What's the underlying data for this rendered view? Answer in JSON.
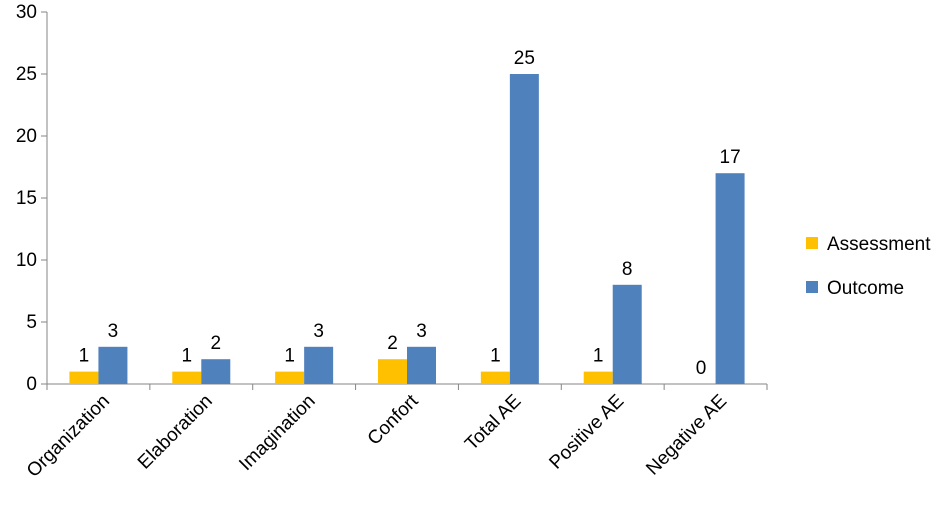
{
  "chart_data": {
    "type": "bar",
    "categories": [
      "Organization",
      "Elaboration",
      "Imagination",
      "Confort",
      "Total AE",
      "Positive AE",
      "Negative AE"
    ],
    "series": [
      {
        "name": "Assessment",
        "values": [
          1,
          1,
          1,
          2,
          1,
          1,
          0
        ],
        "color": "#FFC000"
      },
      {
        "name": "Outcome",
        "values": [
          3,
          2,
          3,
          3,
          25,
          8,
          17
        ],
        "color": "#4F81BD"
      }
    ],
    "ylim": [
      0,
      30
    ],
    "yticks": [
      0,
      5,
      10,
      15,
      20,
      25,
      30
    ],
    "data_labels": true,
    "grid": false,
    "legend_position": "right",
    "title": "",
    "xlabel": "",
    "ylabel": ""
  }
}
